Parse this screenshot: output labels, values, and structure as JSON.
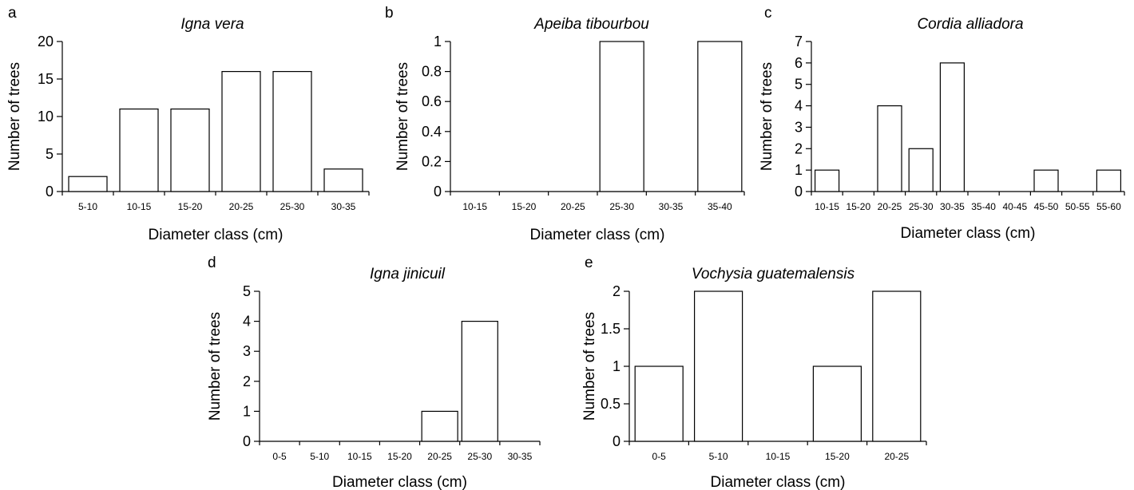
{
  "chart_data": [
    {
      "type": "bar",
      "panel": "a",
      "title": "Igna vera",
      "xlabel": "Diameter class (cm)",
      "ylabel": "Number of trees",
      "categories": [
        "5-10",
        "10-15",
        "15-20",
        "20-25",
        "25-30",
        "30-35"
      ],
      "values": [
        2,
        11,
        11,
        16,
        16,
        3
      ],
      "ylim": [
        0,
        20
      ],
      "yticks": [
        0,
        5,
        10,
        15,
        20
      ],
      "ytick_labels": [
        "0",
        "5",
        "10",
        "15",
        "20"
      ]
    },
    {
      "type": "bar",
      "panel": "b",
      "title": "Apeiba tibourbou",
      "xlabel": "Diameter class (cm)",
      "ylabel": "Number of trees",
      "categories": [
        "10-15",
        "15-20",
        "20-25",
        "25-30",
        "30-35",
        "35-40"
      ],
      "values": [
        0,
        0,
        0,
        1,
        0,
        1
      ],
      "ylim": [
        0,
        1
      ],
      "yticks": [
        0,
        0.2,
        0.4,
        0.6,
        0.8,
        1
      ],
      "ytick_labels": [
        "0",
        "0.2",
        "0.4",
        "0.6",
        "0.8",
        "1"
      ]
    },
    {
      "type": "bar",
      "panel": "c",
      "title": "Cordia alliadora",
      "xlabel": "Diameter class (cm)",
      "ylabel": "Number of trees",
      "categories": [
        "10-15",
        "15-20",
        "20-25",
        "25-30",
        "30-35",
        "35-40",
        "40-45",
        "45-50",
        "50-55",
        "55-60"
      ],
      "values": [
        1,
        0,
        4,
        2,
        6,
        0,
        0,
        1,
        0,
        1
      ],
      "ylim": [
        0,
        7
      ],
      "yticks": [
        0,
        1,
        2,
        3,
        4,
        5,
        6,
        7
      ],
      "ytick_labels": [
        "0",
        "1",
        "2",
        "3",
        "4",
        "5",
        "6",
        "7"
      ]
    },
    {
      "type": "bar",
      "panel": "d",
      "title": "Igna jinicuil",
      "xlabel": "Diameter class (cm)",
      "ylabel": "Number of trees",
      "categories": [
        "0-5",
        "5-10",
        "10-15",
        "15-20",
        "20-25",
        "25-30",
        "30-35"
      ],
      "values": [
        0,
        0,
        0,
        0,
        1,
        4,
        0
      ],
      "ylim": [
        0,
        5
      ],
      "yticks": [
        0,
        1,
        2,
        3,
        4,
        5
      ],
      "ytick_labels": [
        "0",
        "1",
        "2",
        "3",
        "4",
        "5"
      ]
    },
    {
      "type": "bar",
      "panel": "e",
      "title": "Vochysia guatemalensis",
      "xlabel": "Diameter class (cm)",
      "ylabel": "Number of trees",
      "categories": [
        "0-5",
        "5-10",
        "10-15",
        "15-20",
        "20-25"
      ],
      "values": [
        1,
        2,
        0,
        1,
        2
      ],
      "ylim": [
        0,
        2
      ],
      "yticks": [
        0,
        0.5,
        1,
        1.5,
        2
      ],
      "ytick_labels": [
        "0",
        "0.5",
        "1",
        "1.5",
        "2"
      ]
    }
  ]
}
